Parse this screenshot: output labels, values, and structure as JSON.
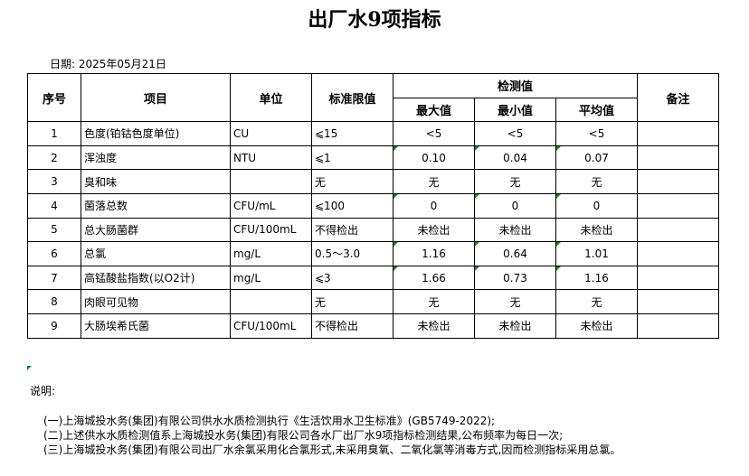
{
  "title": "出厂水9项指标",
  "date": "日期: 2025年05月21日",
  "headers": {
    "no": "序号",
    "item": "项目",
    "unit": "单位",
    "limit": "标准限值",
    "measured": "检测值",
    "max": "最大值",
    "min": "最小值",
    "avg": "平均值",
    "remark": "备注"
  },
  "rows": [
    {
      "no": "1",
      "item": "色度(铂钴色度单位)",
      "unit": "CU",
      "limit": "⩽15",
      "max": "<5",
      "min": "<5",
      "avg": "<5"
    },
    {
      "no": "2",
      "item": "浑浊度",
      "unit": "NTU",
      "limit": "⩽1",
      "max": "0.10",
      "min": "0.04",
      "avg": "0.07"
    },
    {
      "no": "3",
      "item": "臭和味",
      "unit": "",
      "limit": "无",
      "max": "无",
      "min": "无",
      "avg": "无"
    },
    {
      "no": "4",
      "item": "菌落总数",
      "unit": "CFU/mL",
      "limit": "⩽100",
      "max": "0",
      "min": "0",
      "avg": "0"
    },
    {
      "no": "5",
      "item": "总大肠菌群",
      "unit": "CFU/100mL",
      "limit": "不得检出",
      "max": "未检出",
      "min": "未检出",
      "avg": "未检出"
    },
    {
      "no": "6",
      "item": "总氯",
      "unit": "mg/L",
      "limit": "0.5～3.0",
      "max": "1.16",
      "min": "0.64",
      "avg": "1.01"
    },
    {
      "no": "7",
      "item": "高锰酸盐指数(以O2计)",
      "unit": "mg/L",
      "limit": "⩽3",
      "max": "1.66",
      "min": "0.73",
      "avg": "1.16"
    },
    {
      "no": "8",
      "item": "肉眼可见物",
      "unit": "",
      "limit": "无",
      "max": "无",
      "min": "无",
      "avg": "无"
    },
    {
      "no": "9",
      "item": "大肠埃希氏菌",
      "unit": "CFU/100mL",
      "limit": "不得检出",
      "max": "未检出",
      "min": "未检出",
      "avg": "未检出"
    }
  ],
  "notes": {
    "heading": "说明:",
    "lines": [
      "(一)上海城投水务(集团)有限公司供水水质检测执行《生活饮用水卫生标准》(GB5749-2022);",
      "(二)上述供水水质检测值系上海城投水务(集团)有限公司各水厂出厂水9项指标检测结果,公布频率为每日一次;",
      "(三)上海城投水务(集团)有限公司出厂水余氯采用化合氯形式,未采用臭氧、二氧化氯等消毒方式,因而检测指标采用总氯。"
    ]
  },
  "colors": {
    "cell_marker": "#1a8a1a"
  }
}
